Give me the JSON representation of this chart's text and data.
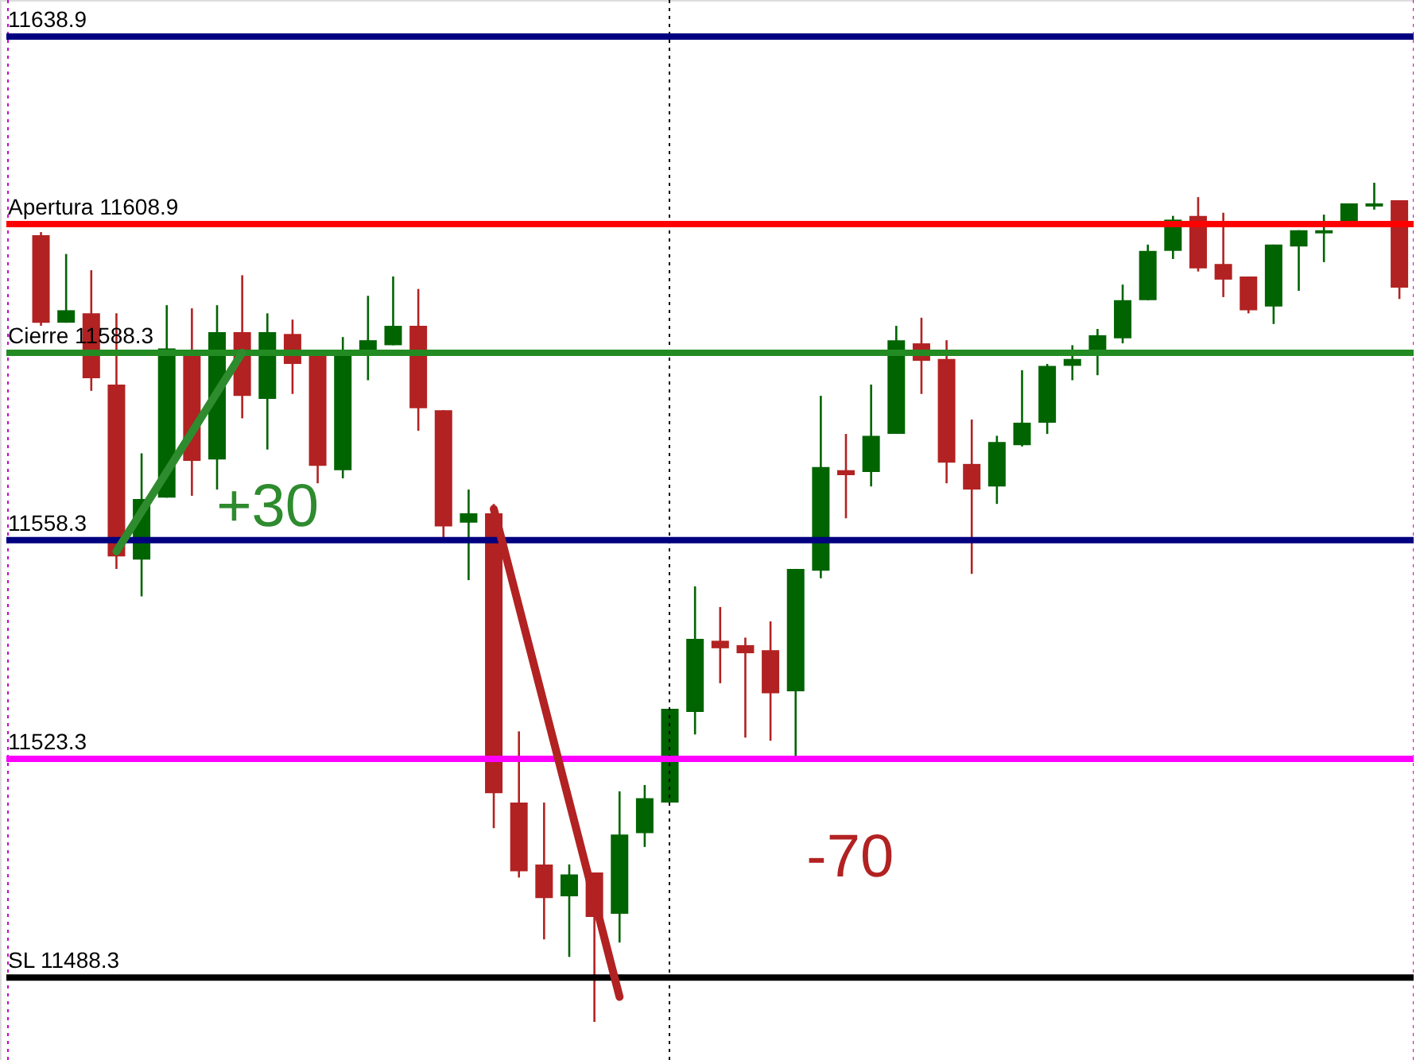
{
  "chart_data": {
    "type": "candlestick",
    "categories": [
      null,
      null,
      null,
      null,
      null,
      null,
      null,
      null,
      null,
      null,
      null,
      null,
      null,
      null,
      null,
      null,
      null,
      null,
      null,
      null,
      null,
      null,
      null,
      null,
      null,
      null,
      null,
      null,
      null,
      null,
      null,
      null,
      null,
      null,
      null,
      null,
      null,
      null,
      null,
      null,
      null,
      null,
      null,
      null,
      null,
      null,
      null,
      null,
      null,
      null,
      null,
      null,
      null,
      null,
      null
    ],
    "ohlc": [
      [
        11607.1,
        11607.6,
        11592.6,
        11593.1
      ],
      [
        11593.1,
        11604.1,
        11593.1,
        11595.1
      ],
      [
        11594.6,
        11601.5,
        11582.2,
        11584.2
      ],
      [
        11583.2,
        11594.6,
        11553.7,
        11555.7
      ],
      [
        11555.2,
        11572.2,
        11549.3,
        11564.9
      ],
      [
        11565.1,
        11595.9,
        11565.1,
        11589.0
      ],
      [
        11588.8,
        11595.4,
        11565.4,
        11571.0
      ],
      [
        11571.2,
        11595.9,
        11566.4,
        11591.6
      ],
      [
        11591.6,
        11600.7,
        11577.8,
        11581.4
      ],
      [
        11580.9,
        11594.6,
        11572.8,
        11591.6
      ],
      [
        11591.3,
        11593.6,
        11581.7,
        11586.5
      ],
      [
        11588.3,
        11588.3,
        11567.4,
        11570.2
      ],
      [
        11569.5,
        11590.8,
        11568.2,
        11588.8
      ],
      [
        11588.5,
        11597.4,
        11583.9,
        11590.3
      ],
      [
        11589.5,
        11600.5,
        11589.5,
        11592.6
      ],
      [
        11592.6,
        11598.5,
        11575.8,
        11579.4
      ],
      [
        11579.1,
        11579.1,
        11558.5,
        11560.5
      ],
      [
        11561.1,
        11566.4,
        11551.9,
        11562.6
      ],
      [
        11562.6,
        11564.1,
        11512.2,
        11517.8
      ],
      [
        11516.3,
        11527.7,
        11504.3,
        11505.3
      ],
      [
        11506.4,
        11516.3,
        11494.4,
        11501.0
      ],
      [
        11501.3,
        11506.4,
        11491.6,
        11504.8
      ],
      [
        11505.1,
        11505.1,
        11481.2,
        11498.0
      ],
      [
        11498.5,
        11518.1,
        11493.9,
        11511.2
      ],
      [
        11511.4,
        11519.1,
        11509.2,
        11517.0
      ],
      [
        11516.3,
        11531.3,
        11516.3,
        11531.3
      ],
      [
        11530.8,
        11550.9,
        11527.2,
        11542.5
      ],
      [
        11542.2,
        11547.6,
        11535.4,
        11541.0
      ],
      [
        11541.5,
        11542.7,
        11526.7,
        11540.2
      ],
      [
        11540.7,
        11545.3,
        11526.2,
        11533.8
      ],
      [
        11534.1,
        11553.7,
        11523.4,
        11553.7
      ],
      [
        11553.4,
        11581.4,
        11552.2,
        11570.0
      ],
      [
        11569.5,
        11575.3,
        11561.8,
        11568.7
      ],
      [
        11569.2,
        11583.2,
        11566.9,
        11575.0
      ],
      [
        11575.3,
        11592.6,
        11575.3,
        11590.3
      ],
      [
        11589.8,
        11593.9,
        11581.7,
        11587.0
      ],
      [
        11587.3,
        11590.3,
        11567.4,
        11570.7
      ],
      [
        11570.5,
        11577.6,
        11552.9,
        11566.4
      ],
      [
        11566.9,
        11575.0,
        11564.1,
        11574.0
      ],
      [
        11573.5,
        11585.5,
        11573.3,
        11577.1
      ],
      [
        11577.1,
        11586.5,
        11575.3,
        11586.2
      ],
      [
        11586.2,
        11589.5,
        11583.9,
        11587.3
      ],
      [
        11588.5,
        11592.1,
        11584.7,
        11591.1
      ],
      [
        11590.6,
        11599.2,
        11589.8,
        11596.7
      ],
      [
        11596.7,
        11605.6,
        11596.7,
        11604.6
      ],
      [
        11604.6,
        11610.2,
        11603.3,
        11609.6
      ],
      [
        11610.2,
        11613.2,
        11601.3,
        11601.8
      ],
      [
        11602.5,
        11610.7,
        11597.2,
        11600.0
      ],
      [
        11600.5,
        11600.5,
        11594.6,
        11595.1
      ],
      [
        11595.7,
        11605.6,
        11592.9,
        11605.6
      ],
      [
        11605.3,
        11607.9,
        11598.2,
        11607.9
      ],
      [
        11607.4,
        11610.4,
        11602.8,
        11607.9
      ],
      [
        11609.1,
        11612.2,
        11609.1,
        11612.2
      ],
      [
        11611.7,
        11615.5,
        11611.2,
        11612.2
      ],
      [
        11612.7,
        11612.7,
        11596.9,
        11598.7
      ]
    ],
    "colors": [
      "#b22222",
      "#006400",
      "#b22222",
      "#b22222",
      "#006400",
      "#006400",
      "#b22222",
      "#006400",
      "#b22222",
      "#006400",
      "#b22222",
      "#b22222",
      "#006400",
      "#006400",
      "#006400",
      "#b22222",
      "#b22222",
      "#006400",
      "#b22222",
      "#b22222",
      "#b22222",
      "#006400",
      "#b22222",
      "#006400",
      "#006400",
      "#006400",
      "#006400",
      "#b22222",
      "#b22222",
      "#b22222",
      "#006400",
      "#006400",
      "#b22222",
      "#006400",
      "#006400",
      "#b22222",
      "#b22222",
      "#b22222",
      "#006400",
      "#006400",
      "#006400",
      "#006400",
      "#006400",
      "#006400",
      "#006400",
      "#006400",
      "#b22222",
      "#b22222",
      "#b22222",
      "#006400",
      "#006400",
      "#006400",
      "#006400",
      "#006400",
      "#b22222"
    ],
    "series": [
      {
        "type": "line",
        "color": "#2e8b2e",
        "values": [
          null,
          null,
          null,
          11556.5,
          null,
          null,
          null,
          null,
          11588.3,
          null,
          null,
          null,
          null,
          null,
          null,
          null,
          null,
          null,
          null,
          null,
          null,
          null,
          null,
          null,
          null,
          null,
          null,
          null,
          null,
          null,
          null,
          null,
          null,
          null,
          null,
          null,
          null,
          null,
          null,
          null,
          null,
          null,
          null,
          null,
          null,
          null,
          null,
          null,
          null,
          null,
          null,
          null,
          null,
          null,
          null
        ]
      },
      {
        "type": "line",
        "color": "#b22222",
        "values": [
          null,
          null,
          null,
          null,
          null,
          null,
          null,
          null,
          null,
          null,
          null,
          null,
          null,
          null,
          null,
          null,
          null,
          null,
          11563.3,
          null,
          null,
          null,
          null,
          11485.2,
          null,
          null,
          null,
          null,
          null,
          null,
          null,
          null,
          null,
          null,
          null,
          null,
          null,
          null,
          null,
          null,
          null,
          null,
          null,
          null,
          null,
          null,
          null,
          null,
          null,
          null,
          null,
          null,
          null,
          null,
          null
        ]
      }
    ],
    "ylim": [
      11475.1,
      11644.75
    ],
    "tick_labels": false,
    "grid": false,
    "ref_lines": [
      {
        "axis": "y",
        "value": 11638.9,
        "label": "11638.9",
        "color": "#000080"
      },
      {
        "axis": "y",
        "value": 11608.9,
        "label": "Apertura 11608.9",
        "color": "#ff0000"
      },
      {
        "axis": "y",
        "value": 11588.3,
        "label": "Cierre 11588.3",
        "color": "#228b22"
      },
      {
        "axis": "y",
        "value": 11558.3,
        "label": "11558.3",
        "color": "#000080"
      },
      {
        "axis": "y",
        "value": 11523.3,
        "label": "11523.3",
        "color": "#ff00ff"
      },
      {
        "axis": "y",
        "value": 11488.3,
        "label": "SL 11488.3",
        "color": "#000000"
      }
    ],
    "annotations": [
      "+30",
      "-70"
    ]
  }
}
